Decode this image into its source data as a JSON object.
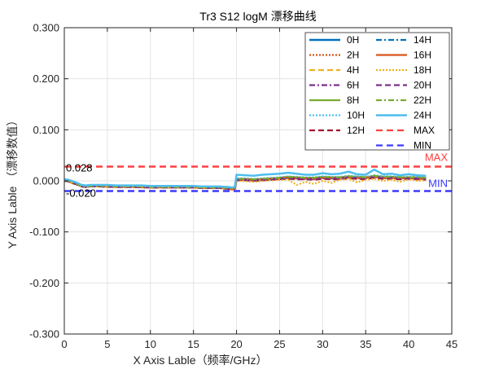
{
  "chart_data": {
    "type": "line",
    "title": "Tr3 S12 logM  漂移曲线",
    "xlabel": "X Axis Lable（频率/GHz）",
    "ylabel": "Y Axis Lable （漂移数值）",
    "xlim": [
      0,
      45
    ],
    "ylim": [
      -0.3,
      0.3
    ],
    "x_ticks": [
      0,
      5,
      10,
      15,
      20,
      25,
      30,
      35,
      40,
      45
    ],
    "x_tick_labels": [
      "0",
      "5",
      "10",
      "15",
      "20",
      "25",
      "30",
      "35",
      "40",
      "45"
    ],
    "y_ticks": [
      -0.3,
      -0.2,
      -0.1,
      0,
      0.1,
      0.2,
      0.3
    ],
    "y_tick_labels": [
      "-0.300",
      "-0.200",
      "-0.100",
      "0.000",
      "0.100",
      "0.200",
      "0.300"
    ],
    "grid": true,
    "legend_position": "top-right",
    "x": [
      0,
      0.5,
      1,
      1.5,
      2,
      2.5,
      3,
      4,
      5,
      6,
      7,
      8,
      9,
      10,
      11,
      12,
      13,
      14,
      15,
      16,
      17,
      18,
      19,
      19.5,
      19.8,
      20,
      21,
      22,
      23,
      24,
      25,
      26,
      27,
      28,
      29,
      30,
      31,
      32,
      33,
      34,
      35,
      36,
      37,
      38,
      39,
      40,
      41,
      42
    ],
    "series": [
      {
        "name": "0H",
        "color": "#0072BD",
        "dash": "solid",
        "width": 2.5,
        "values": [
          0.0,
          0.0,
          -0.004,
          -0.006,
          -0.01,
          -0.012,
          -0.01,
          -0.01,
          -0.011,
          -0.011,
          -0.011,
          -0.011,
          -0.012,
          -0.012,
          -0.012,
          -0.012,
          -0.012,
          -0.012,
          -0.012,
          -0.013,
          -0.013,
          -0.013,
          -0.015,
          -0.016,
          -0.015,
          0.002,
          0.002,
          0.001,
          0.002,
          0.003,
          0.004,
          0.006,
          0.005,
          0.005,
          0.004,
          0.006,
          0.005,
          0.006,
          0.007,
          0.006,
          0.006,
          0.008,
          0.006,
          0.006,
          0.005,
          0.006,
          0.005,
          0.004
        ]
      },
      {
        "name": "2H",
        "color": "#D95319",
        "dash": "2,2",
        "width": 2.2,
        "values": [
          0.0,
          -0.001,
          -0.005,
          -0.008,
          -0.011,
          -0.012,
          -0.011,
          -0.011,
          -0.012,
          -0.012,
          -0.012,
          -0.012,
          -0.013,
          -0.013,
          -0.013,
          -0.013,
          -0.013,
          -0.013,
          -0.013,
          -0.014,
          -0.014,
          -0.014,
          -0.016,
          -0.017,
          -0.016,
          0.001,
          0.001,
          0.0,
          0.001,
          0.002,
          0.003,
          0.005,
          0.004,
          0.003,
          0.003,
          0.005,
          0.004,
          0.004,
          0.006,
          0.005,
          0.004,
          0.007,
          0.005,
          0.005,
          0.004,
          0.005,
          0.004,
          0.003
        ]
      },
      {
        "name": "4H",
        "color": "#EDB120",
        "dash": "7,4",
        "width": 2.2,
        "values": [
          0.001,
          0.0,
          -0.003,
          -0.006,
          -0.01,
          -0.011,
          -0.01,
          -0.01,
          -0.01,
          -0.011,
          -0.011,
          -0.011,
          -0.011,
          -0.012,
          -0.012,
          -0.012,
          -0.012,
          -0.012,
          -0.012,
          -0.013,
          -0.013,
          -0.013,
          -0.014,
          -0.015,
          -0.014,
          0.003,
          0.003,
          0.002,
          0.003,
          0.004,
          0.005,
          0.007,
          0.006,
          0.005,
          0.005,
          0.007,
          0.006,
          0.006,
          0.008,
          0.007,
          0.006,
          0.009,
          0.007,
          0.007,
          0.006,
          0.006,
          0.006,
          0.005
        ]
      },
      {
        "name": "6H",
        "color": "#7E2F8E",
        "dash": "7,3,2,3",
        "width": 2.2,
        "values": [
          0.0,
          -0.001,
          -0.004,
          -0.007,
          -0.011,
          -0.012,
          -0.011,
          -0.011,
          -0.011,
          -0.012,
          -0.012,
          -0.012,
          -0.012,
          -0.013,
          -0.013,
          -0.013,
          -0.013,
          -0.013,
          -0.013,
          -0.014,
          -0.014,
          -0.014,
          -0.015,
          -0.016,
          -0.015,
          0.002,
          0.002,
          0.001,
          0.002,
          0.003,
          0.004,
          0.006,
          0.005,
          0.004,
          0.004,
          0.006,
          0.005,
          0.005,
          0.007,
          0.006,
          0.005,
          0.008,
          0.006,
          0.006,
          0.005,
          0.005,
          0.005,
          0.004
        ]
      },
      {
        "name": "8H",
        "color": "#77AC30",
        "dash": "solid",
        "width": 2.2,
        "values": [
          0.001,
          0.0,
          -0.004,
          -0.006,
          -0.01,
          -0.011,
          -0.01,
          -0.01,
          -0.011,
          -0.011,
          -0.011,
          -0.011,
          -0.012,
          -0.012,
          -0.012,
          -0.012,
          -0.012,
          -0.012,
          -0.012,
          -0.013,
          -0.013,
          -0.013,
          -0.015,
          -0.016,
          -0.015,
          0.004,
          0.004,
          0.003,
          0.004,
          0.005,
          0.006,
          0.008,
          0.007,
          0.006,
          0.006,
          0.008,
          0.007,
          0.007,
          0.009,
          0.008,
          0.007,
          0.01,
          0.008,
          0.008,
          0.007,
          0.007,
          0.007,
          0.006
        ]
      },
      {
        "name": "10H",
        "color": "#4DBEEE",
        "dash": "2,2",
        "width": 2.2,
        "values": [
          0.001,
          0.0,
          -0.003,
          -0.006,
          -0.01,
          -0.011,
          -0.01,
          -0.01,
          -0.01,
          -0.011,
          -0.011,
          -0.011,
          -0.011,
          -0.012,
          -0.012,
          -0.012,
          -0.012,
          -0.012,
          -0.012,
          -0.013,
          -0.013,
          -0.013,
          -0.014,
          -0.015,
          -0.014,
          0.005,
          0.005,
          0.004,
          0.005,
          0.006,
          0.007,
          0.009,
          0.008,
          0.007,
          0.007,
          0.009,
          0.008,
          0.008,
          0.01,
          0.009,
          0.008,
          0.011,
          0.009,
          0.009,
          0.008,
          0.008,
          0.008,
          0.007
        ]
      },
      {
        "name": "12H",
        "color": "#A2142F",
        "dash": "7,4",
        "width": 2.2,
        "values": [
          0.0,
          -0.001,
          -0.005,
          -0.007,
          -0.011,
          -0.012,
          -0.011,
          -0.011,
          -0.012,
          -0.012,
          -0.012,
          -0.012,
          -0.013,
          -0.013,
          -0.013,
          -0.013,
          -0.013,
          -0.013,
          -0.013,
          -0.014,
          -0.014,
          -0.014,
          -0.016,
          -0.017,
          -0.016,
          0.001,
          0.001,
          0.0,
          0.001,
          0.002,
          0.003,
          0.004,
          0.003,
          0.003,
          0.002,
          0.004,
          0.003,
          0.003,
          0.005,
          0.004,
          0.003,
          0.006,
          0.004,
          0.004,
          0.003,
          0.004,
          0.003,
          0.002
        ]
      },
      {
        "name": "14H",
        "color": "#0072BD",
        "dash": "7,3,2,3",
        "width": 2.2,
        "values": [
          0.0,
          -0.001,
          -0.004,
          -0.007,
          -0.011,
          -0.012,
          -0.011,
          -0.011,
          -0.011,
          -0.011,
          -0.012,
          -0.012,
          -0.012,
          -0.012,
          -0.013,
          -0.013,
          -0.013,
          -0.013,
          -0.013,
          -0.013,
          -0.014,
          -0.014,
          -0.015,
          -0.016,
          -0.015,
          0.003,
          0.003,
          0.002,
          0.003,
          0.004,
          0.005,
          0.007,
          0.006,
          0.005,
          0.005,
          0.007,
          0.006,
          0.006,
          0.008,
          0.007,
          0.006,
          0.009,
          0.007,
          0.007,
          0.006,
          0.006,
          0.006,
          0.005
        ]
      },
      {
        "name": "16H",
        "color": "#D95319",
        "dash": "solid",
        "width": 2.2,
        "values": [
          0.0,
          -0.001,
          -0.005,
          -0.007,
          -0.011,
          -0.012,
          -0.011,
          -0.011,
          -0.011,
          -0.012,
          -0.012,
          -0.012,
          -0.012,
          -0.013,
          -0.013,
          -0.013,
          -0.013,
          -0.013,
          -0.013,
          -0.014,
          -0.014,
          -0.014,
          -0.016,
          -0.017,
          -0.016,
          0.002,
          0.003,
          0.002,
          0.003,
          0.004,
          0.005,
          0.007,
          0.006,
          0.005,
          0.005,
          0.006,
          0.006,
          0.006,
          0.007,
          0.006,
          0.006,
          0.008,
          0.006,
          0.006,
          0.005,
          0.006,
          0.005,
          0.004
        ]
      },
      {
        "name": "18H",
        "color": "#EDB120",
        "dash": "2,2",
        "width": 2.2,
        "values": [
          0.0,
          -0.001,
          -0.004,
          -0.007,
          -0.011,
          -0.012,
          -0.011,
          -0.011,
          -0.011,
          -0.012,
          -0.012,
          -0.012,
          -0.012,
          -0.013,
          -0.013,
          -0.013,
          -0.013,
          -0.013,
          -0.013,
          -0.014,
          -0.014,
          -0.014,
          -0.015,
          -0.016,
          -0.015,
          0.0,
          0.0,
          -0.002,
          0.0,
          0.001,
          0.002,
          0.002,
          -0.008,
          -0.002,
          -0.006,
          0.0,
          -0.004,
          0.002,
          0.004,
          -0.003,
          0.002,
          0.004,
          0.0,
          0.002,
          -0.002,
          0.003,
          0.0,
          0.001
        ]
      },
      {
        "name": "20H",
        "color": "#7E2F8E",
        "dash": "7,4",
        "width": 2.2,
        "values": [
          0.0,
          -0.001,
          -0.004,
          -0.007,
          -0.011,
          -0.012,
          -0.011,
          -0.011,
          -0.011,
          -0.012,
          -0.012,
          -0.012,
          -0.012,
          -0.013,
          -0.013,
          -0.013,
          -0.013,
          -0.013,
          -0.013,
          -0.014,
          -0.014,
          -0.014,
          -0.015,
          -0.016,
          -0.015,
          0.002,
          0.002,
          0.001,
          0.002,
          0.003,
          0.004,
          0.006,
          0.005,
          0.004,
          0.004,
          0.006,
          0.005,
          0.005,
          0.007,
          0.006,
          0.005,
          0.008,
          0.006,
          0.006,
          0.005,
          0.005,
          0.005,
          0.004
        ]
      },
      {
        "name": "22H",
        "color": "#77AC30",
        "dash": "7,3,2,3",
        "width": 2.2,
        "values": [
          0.001,
          0.0,
          -0.003,
          -0.006,
          -0.01,
          -0.011,
          -0.01,
          -0.01,
          -0.01,
          -0.011,
          -0.011,
          -0.011,
          -0.011,
          -0.012,
          -0.012,
          -0.012,
          -0.012,
          -0.012,
          -0.012,
          -0.013,
          -0.013,
          -0.013,
          -0.014,
          -0.015,
          -0.014,
          0.004,
          0.004,
          0.003,
          0.004,
          0.005,
          0.006,
          0.008,
          0.007,
          0.006,
          0.006,
          0.008,
          0.007,
          0.007,
          0.009,
          0.008,
          0.007,
          0.01,
          0.008,
          0.008,
          0.007,
          0.007,
          0.007,
          0.006
        ]
      },
      {
        "name": "24H",
        "color": "#4DBEEE",
        "dash": "solid",
        "width": 2.5,
        "values": [
          0.003,
          0.002,
          -0.001,
          -0.004,
          -0.008,
          -0.009,
          -0.008,
          -0.008,
          -0.008,
          -0.009,
          -0.009,
          -0.009,
          -0.009,
          -0.01,
          -0.01,
          -0.01,
          -0.01,
          -0.01,
          -0.01,
          -0.011,
          -0.011,
          -0.011,
          -0.012,
          -0.013,
          -0.012,
          0.012,
          0.011,
          0.01,
          0.012,
          0.013,
          0.014,
          0.016,
          0.014,
          0.012,
          0.012,
          0.015,
          0.013,
          0.014,
          0.018,
          0.013,
          0.012,
          0.022,
          0.013,
          0.014,
          0.011,
          0.013,
          0.011,
          0.01
        ]
      }
    ],
    "reference_lines": [
      {
        "name": "MAX",
        "value": 0.028,
        "color": "#FF4040",
        "dash": "8,5",
        "label": "MAX",
        "value_label": "0.028"
      },
      {
        "name": "MIN",
        "value": -0.02,
        "color": "#3A3AFF",
        "dash": "8,5",
        "label": "MIN",
        "value_label": "-0.020"
      }
    ]
  }
}
